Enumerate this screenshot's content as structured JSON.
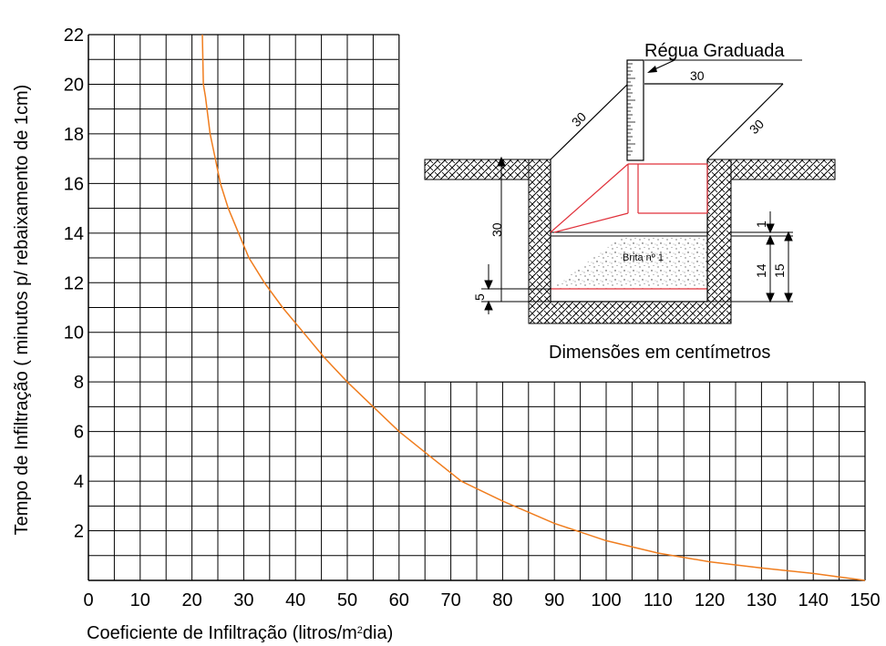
{
  "chart_data": {
    "type": "line",
    "xlabel": "Coeficiente de Infiltração (litros/m",
    "xlabel_sup": "2",
    "xlabel_tail": "dia)",
    "ylabel": "Tempo de Infiltração ( minutos p/ rebaixamento de 1cm)",
    "xlim": [
      0,
      150
    ],
    "ylim": [
      0,
      22
    ],
    "x_ticks": [
      0,
      10,
      20,
      30,
      40,
      50,
      60,
      70,
      80,
      90,
      100,
      110,
      120,
      130,
      140,
      150
    ],
    "y_ticks": [
      2,
      4,
      6,
      8,
      10,
      12,
      14,
      16,
      18,
      20,
      22
    ],
    "grid": true,
    "series": [
      {
        "color": "#f07d1e",
        "points": [
          [
            22.0,
            22.0
          ],
          [
            22.2,
            20.0
          ],
          [
            22.6,
            19.5
          ],
          [
            23.5,
            18.0
          ],
          [
            24.5,
            17.0
          ],
          [
            25.5,
            16.0
          ],
          [
            27.0,
            15.0
          ],
          [
            29.0,
            14.0
          ],
          [
            31.0,
            13.0
          ],
          [
            34.0,
            12.0
          ],
          [
            37.5,
            11.0
          ],
          [
            41.5,
            10.0
          ],
          [
            45.5,
            9.0
          ],
          [
            50.0,
            8.0
          ],
          [
            55.0,
            7.0
          ],
          [
            60.0,
            6.0
          ],
          [
            66.0,
            5.0
          ],
          [
            72.0,
            4.0
          ],
          [
            80.0,
            3.2
          ],
          [
            90.0,
            2.3
          ],
          [
            100.0,
            1.6
          ],
          [
            110.0,
            1.1
          ],
          [
            120.0,
            0.75
          ],
          [
            130.0,
            0.5
          ],
          [
            140.0,
            0.28
          ],
          [
            150.0,
            0.0
          ]
        ]
      }
    ]
  },
  "diagram": {
    "ruler_label": "Régua Graduada",
    "dim_top": "30",
    "dim_left": "30",
    "dim_right": "30",
    "dim_depth": "30",
    "dim_1": "1",
    "dim_14": "14",
    "dim_15": "15",
    "dim_5": "5",
    "gravel_label": "Brita nº 1",
    "units_note": "Dimensões em centímetros"
  }
}
